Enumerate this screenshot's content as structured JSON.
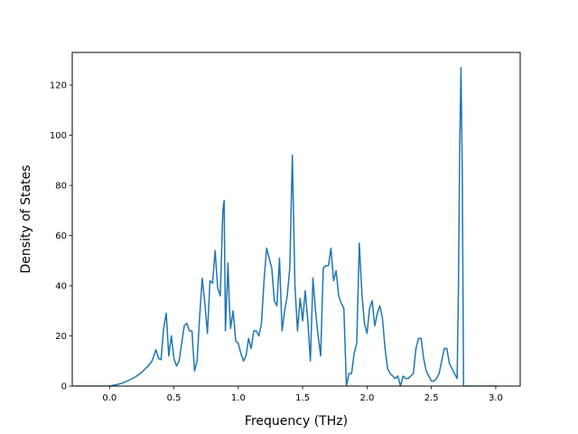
{
  "chart_data": {
    "type": "line",
    "title": "",
    "xlabel": "Frequency (THz)",
    "ylabel": "Density of States",
    "xlim": [
      -0.29,
      3.19
    ],
    "ylim": [
      0,
      133
    ],
    "x_ticks": [
      0.0,
      0.5,
      1.0,
      1.5,
      2.0,
      2.5,
      3.0
    ],
    "x_tick_labels": [
      "0.0",
      "0.5",
      "1.0",
      "1.5",
      "2.0",
      "2.5",
      "3.0"
    ],
    "y_ticks": [
      0,
      20,
      40,
      60,
      80,
      100,
      120
    ],
    "y_tick_labels": [
      "0",
      "20",
      "40",
      "60",
      "80",
      "100",
      "120"
    ],
    "grid": false,
    "legend": "none",
    "series": [
      {
        "color": "#1f77b4",
        "x": [
          -0.27,
          -0.1,
          0.0,
          0.05,
          0.1,
          0.15,
          0.2,
          0.25,
          0.3,
          0.33,
          0.36,
          0.38,
          0.4,
          0.42,
          0.44,
          0.46,
          0.48,
          0.5,
          0.52,
          0.54,
          0.56,
          0.58,
          0.6,
          0.62,
          0.64,
          0.66,
          0.68,
          0.7,
          0.72,
          0.74,
          0.76,
          0.78,
          0.8,
          0.82,
          0.84,
          0.86,
          0.88,
          0.89,
          0.9,
          0.92,
          0.93,
          0.94,
          0.96,
          0.98,
          1.0,
          1.02,
          1.04,
          1.06,
          1.08,
          1.1,
          1.12,
          1.14,
          1.16,
          1.18,
          1.2,
          1.22,
          1.24,
          1.26,
          1.28,
          1.3,
          1.32,
          1.34,
          1.36,
          1.38,
          1.4,
          1.42,
          1.44,
          1.46,
          1.48,
          1.5,
          1.52,
          1.54,
          1.56,
          1.58,
          1.6,
          1.62,
          1.64,
          1.66,
          1.68,
          1.7,
          1.72,
          1.74,
          1.76,
          1.78,
          1.8,
          1.82,
          1.84,
          1.86,
          1.88,
          1.9,
          1.92,
          1.94,
          1.96,
          1.98,
          2.0,
          2.02,
          2.04,
          2.06,
          2.08,
          2.1,
          2.12,
          2.14,
          2.16,
          2.18,
          2.2,
          2.22,
          2.24,
          2.26,
          2.28,
          2.3,
          2.32,
          2.34,
          2.36,
          2.38,
          2.4,
          2.42,
          2.44,
          2.46,
          2.48,
          2.5,
          2.52,
          2.54,
          2.56,
          2.58,
          2.6,
          2.62,
          2.64,
          2.66,
          2.68,
          2.7,
          2.71,
          2.72,
          2.73,
          2.74,
          2.75,
          2.76,
          2.8,
          2.9,
          3.02
        ],
        "y": [
          0,
          0,
          0,
          0.5,
          1.2,
          2.3,
          3.6,
          5.5,
          8,
          10,
          14.5,
          11,
          10.5,
          23,
          29,
          12,
          20,
          11,
          8,
          10,
          17,
          24,
          25,
          22,
          22,
          6,
          10,
          28,
          43,
          33,
          21,
          42,
          41,
          54,
          39,
          36,
          70,
          74,
          22,
          49,
          33,
          23,
          30,
          18,
          17,
          13,
          10,
          12,
          19,
          15,
          22,
          22,
          20,
          25,
          42,
          55,
          51,
          47,
          34,
          32,
          51,
          22,
          30,
          36,
          47,
          92,
          40,
          22,
          35,
          26,
          38,
          26,
          10,
          43,
          30,
          20,
          12,
          47,
          48,
          48,
          55,
          42,
          46,
          36,
          33,
          31,
          0,
          5,
          5,
          13,
          17,
          57,
          37,
          25,
          21,
          31,
          34,
          24,
          29,
          32,
          27,
          15,
          7,
          5,
          4,
          3,
          4,
          0,
          4,
          3,
          3,
          4,
          5,
          15,
          19,
          19,
          11,
          6,
          4,
          2,
          2,
          3,
          5,
          10,
          15,
          15,
          9,
          7,
          5,
          3,
          38,
          95,
          127,
          85,
          0,
          0,
          0,
          0,
          0
        ]
      }
    ]
  }
}
